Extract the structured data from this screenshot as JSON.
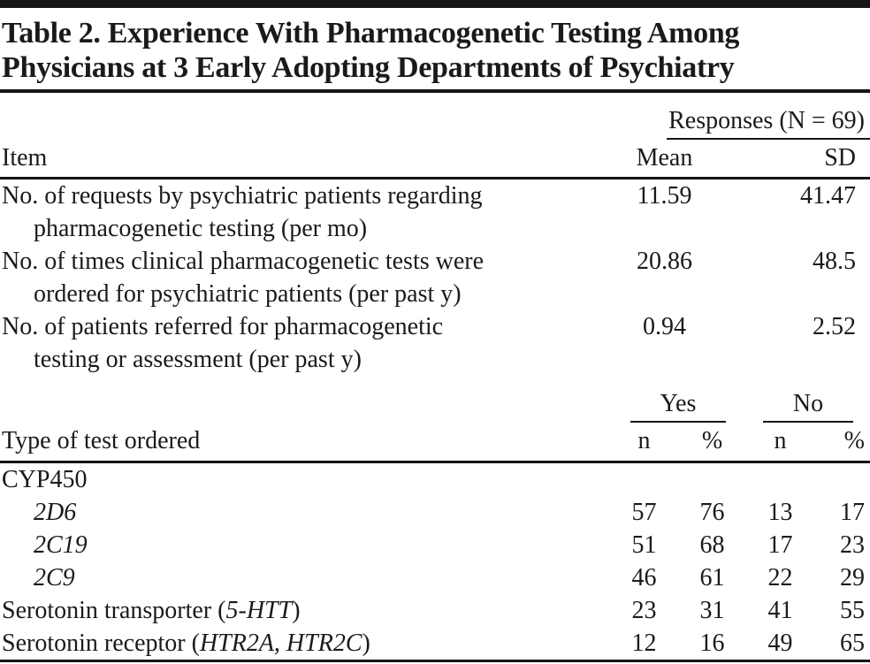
{
  "title": {
    "line1": "Table 2. Experience With Pharmacogenetic Testing Among",
    "line2": "Physicians at 3 Early Adopting Departments of Psychiatry"
  },
  "stats": {
    "group_header": "Responses (N = 69)",
    "item_header": "Item",
    "col_mean": "Mean",
    "col_sd": "SD",
    "rows": [
      {
        "line1": "No. of requests by psychiatric patients regarding",
        "line2": "pharmacogenetic testing (per mo)",
        "mean": "11.59",
        "sd": "41.47"
      },
      {
        "line1": "No. of times clinical pharmacogenetic tests were",
        "line2": "ordered for psychiatric patients (per past y)",
        "mean": "20.86",
        "sd": "48.5"
      },
      {
        "line1": "No. of patients referred for pharmacogenetic",
        "line2": "testing or assessment (per past y)",
        "mean": "0.94",
        "sd": "2.52"
      }
    ]
  },
  "tests": {
    "section_header": "Type of test ordered",
    "yes_label": "Yes",
    "no_label": "No",
    "col_n": "n",
    "col_pct": "%",
    "rows": [
      {
        "label": "CYP450",
        "yes_n": "",
        "yes_pct": "",
        "no_n": "",
        "no_pct": ""
      },
      {
        "label": "2D6",
        "yes_n": "57",
        "yes_pct": "76",
        "no_n": "13",
        "no_pct": "17"
      },
      {
        "label": "2C19",
        "yes_n": "51",
        "yes_pct": "68",
        "no_n": "17",
        "no_pct": "23"
      },
      {
        "label": "2C9",
        "yes_n": "46",
        "yes_pct": "61",
        "no_n": "22",
        "no_pct": "29"
      },
      {
        "prefix": "Serotonin transporter (",
        "gene": "5-HTT",
        "suffix": ")",
        "yes_n": "23",
        "yes_pct": "31",
        "no_n": "41",
        "no_pct": "55"
      },
      {
        "prefix": "Serotonin receptor (",
        "gene": "HTR2A, HTR2C",
        "suffix": ")",
        "yes_n": "12",
        "yes_pct": "16",
        "no_n": "49",
        "no_pct": "65"
      }
    ]
  }
}
